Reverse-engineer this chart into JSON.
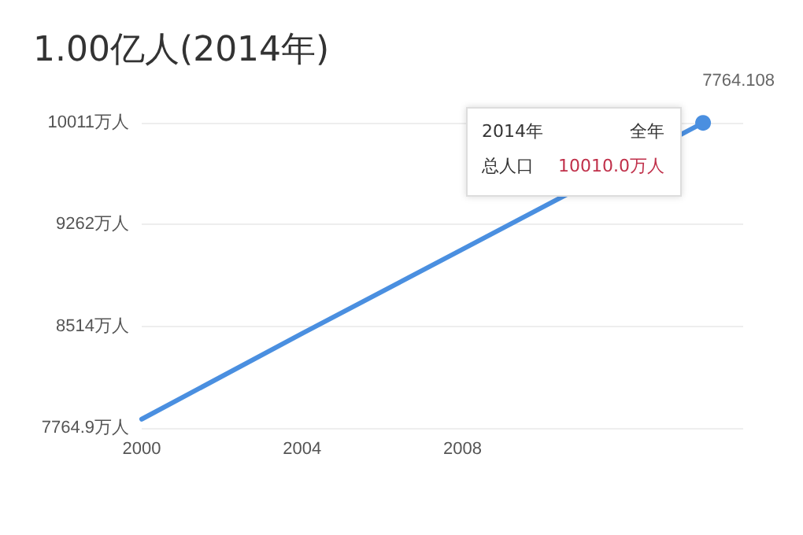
{
  "chart_data": {
    "type": "line",
    "title": "1.00亿人(2014年)",
    "x": [
      2000,
      2004,
      2008,
      2014
    ],
    "series": [
      {
        "color": "#4a8fe0",
        "values": [
          7830,
          8460,
          9080,
          10010
        ]
      }
    ],
    "xlim": [
      2000,
      2015
    ],
    "xticks": [
      2000,
      2004,
      2008
    ],
    "ylim": [
      7764.9,
      10011
    ],
    "yticks": [
      {
        "value": 7764.9,
        "label": "7764.9万人"
      },
      {
        "value": 8514,
        "label": "8514万人"
      },
      {
        "value": 9262,
        "label": "9262万人"
      },
      {
        "value": 10011,
        "label": "10011万人"
      }
    ],
    "grid": "y",
    "marker": "none",
    "line_style": "solid",
    "annotations": [
      "2014年",
      "全年",
      "总人口",
      "10010.0万人",
      "7764.108"
    ]
  }
}
